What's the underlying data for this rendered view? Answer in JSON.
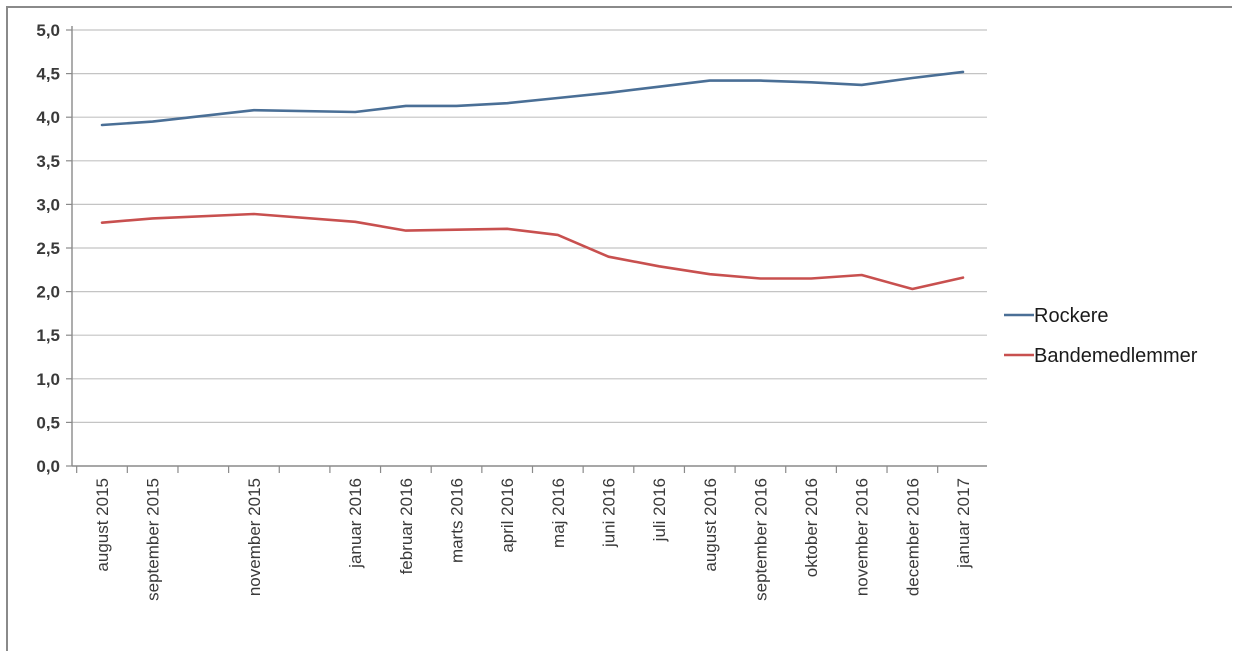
{
  "chart_data": {
    "type": "line",
    "title": "",
    "xlabel": "",
    "ylabel": "",
    "categories": [
      "august 2015",
      "september 2015",
      "november 2015",
      "januar 2016",
      "februar 2016",
      "marts 2016",
      "april 2016",
      "maj 2016",
      "juni 2016",
      "juli 2016",
      "august 2016",
      "september 2016",
      "oktober 2016",
      "november 2016",
      "december 2016",
      "januar 2017"
    ],
    "x_months": [
      0,
      1,
      3,
      5,
      6,
      7,
      8,
      9,
      10,
      11,
      12,
      13,
      14,
      15,
      16,
      17
    ],
    "ylim": [
      0,
      5
    ],
    "yticks": [
      "0,0",
      "0,5",
      "1,0",
      "1,5",
      "2,0",
      "2,5",
      "3,0",
      "3,5",
      "4,0",
      "4,5",
      "5,0"
    ],
    "grid": true,
    "legend_position": "right",
    "series": [
      {
        "name": "Rockere",
        "color": "#4a6f96",
        "values": [
          3.91,
          3.95,
          4.08,
          4.06,
          4.13,
          4.13,
          4.16,
          4.22,
          4.28,
          4.35,
          4.42,
          4.42,
          4.4,
          4.37,
          4.45,
          4.52
        ]
      },
      {
        "name": "Bandemedlemmer",
        "color": "#c8504f",
        "values": [
          2.79,
          2.84,
          2.89,
          2.8,
          2.7,
          2.71,
          2.72,
          2.65,
          2.4,
          2.29,
          2.2,
          2.15,
          2.15,
          2.19,
          2.03,
          2.16
        ]
      }
    ]
  }
}
